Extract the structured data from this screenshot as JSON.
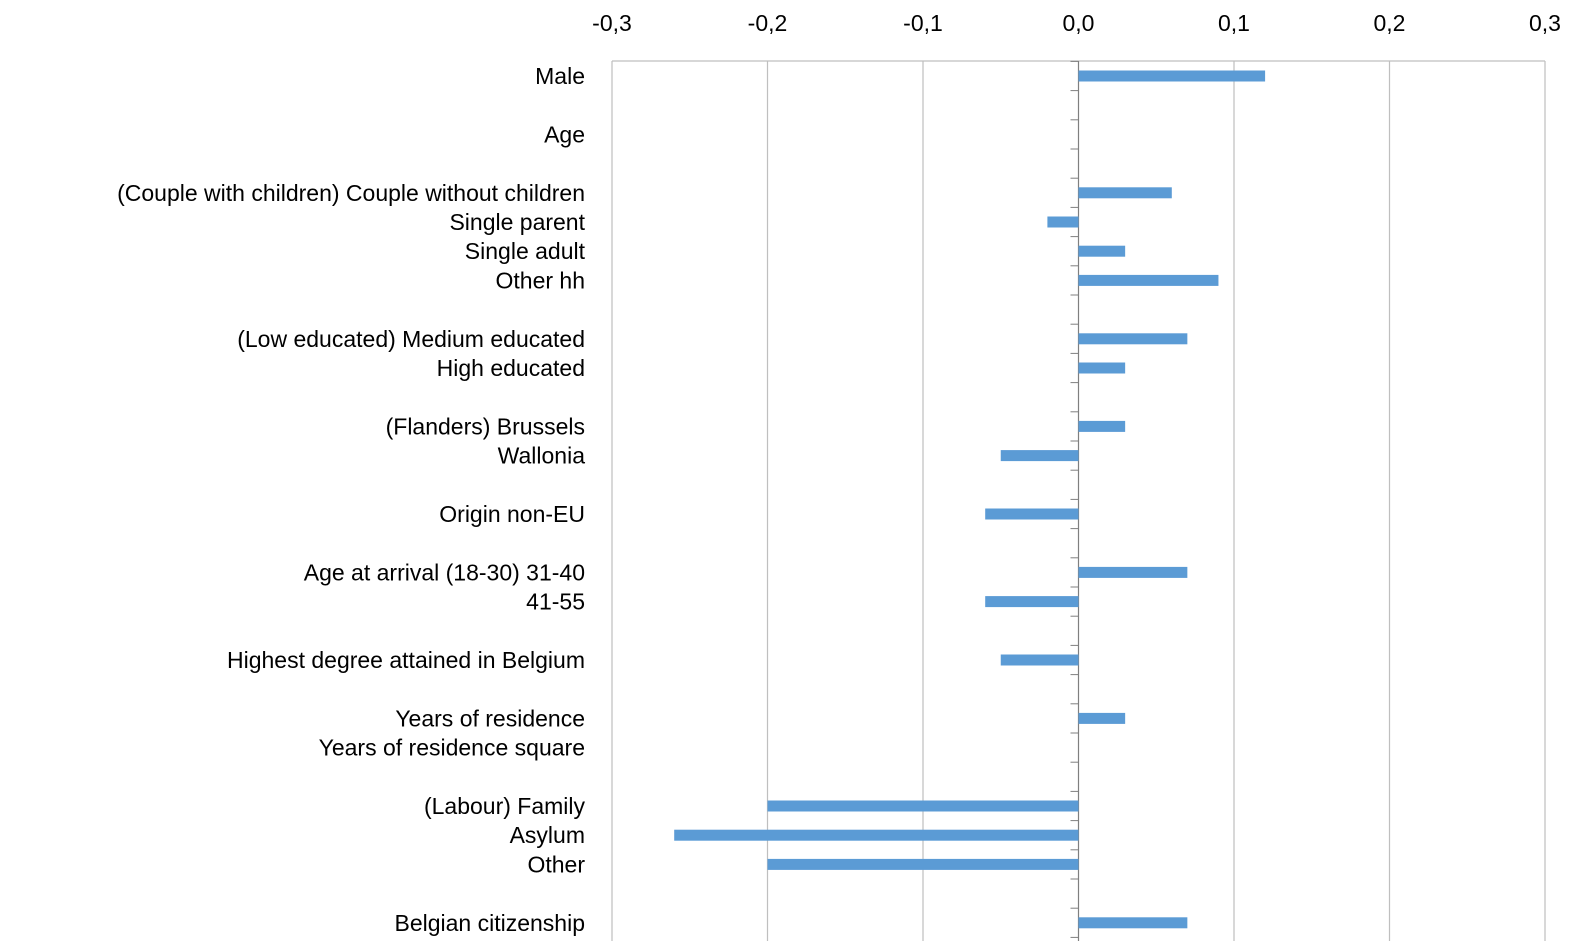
{
  "chart_data": {
    "type": "bar",
    "orientation": "horizontal",
    "title": "",
    "xlabel": "",
    "ylabel": "",
    "xlim": [
      -0.3,
      0.3
    ],
    "x_ticks": [
      "-0,3",
      "-0,2",
      "-0,1",
      "0,0",
      "0,1",
      "0,2",
      "0,3"
    ],
    "x_axis_position": "top",
    "grid": "vertical major gridlines",
    "legend": "none",
    "colors": {
      "bar": "#5b9bd5",
      "grid": "#bfbfbf",
      "axis": "#7f7f7f",
      "text": "#000000"
    },
    "categories": [
      "Male",
      "",
      "Age",
      "",
      "(Couple with children)  Couple without children",
      "Single parent",
      "Single adult",
      "Other hh",
      "",
      "(Low educated)  Medium educated",
      "High educated",
      "",
      "(Flanders)  Brussels",
      "Wallonia",
      "",
      "Origin non-EU",
      "",
      "Age at arrival (18-30)  31-40",
      "41-55",
      "",
      "Highest degree attained in Belgium",
      "",
      "Years of residence",
      "Years of residence square",
      "",
      "(Labour)  Family",
      "Asylum",
      "Other",
      "",
      "Belgian citizenship"
    ],
    "values": [
      0.12,
      null,
      0.0,
      null,
      0.06,
      -0.02,
      0.03,
      0.09,
      null,
      0.07,
      0.03,
      null,
      0.03,
      -0.05,
      null,
      -0.06,
      null,
      0.07,
      -0.06,
      null,
      -0.05,
      null,
      0.03,
      0.0,
      null,
      -0.2,
      -0.26,
      -0.2,
      null,
      0.07
    ]
  }
}
